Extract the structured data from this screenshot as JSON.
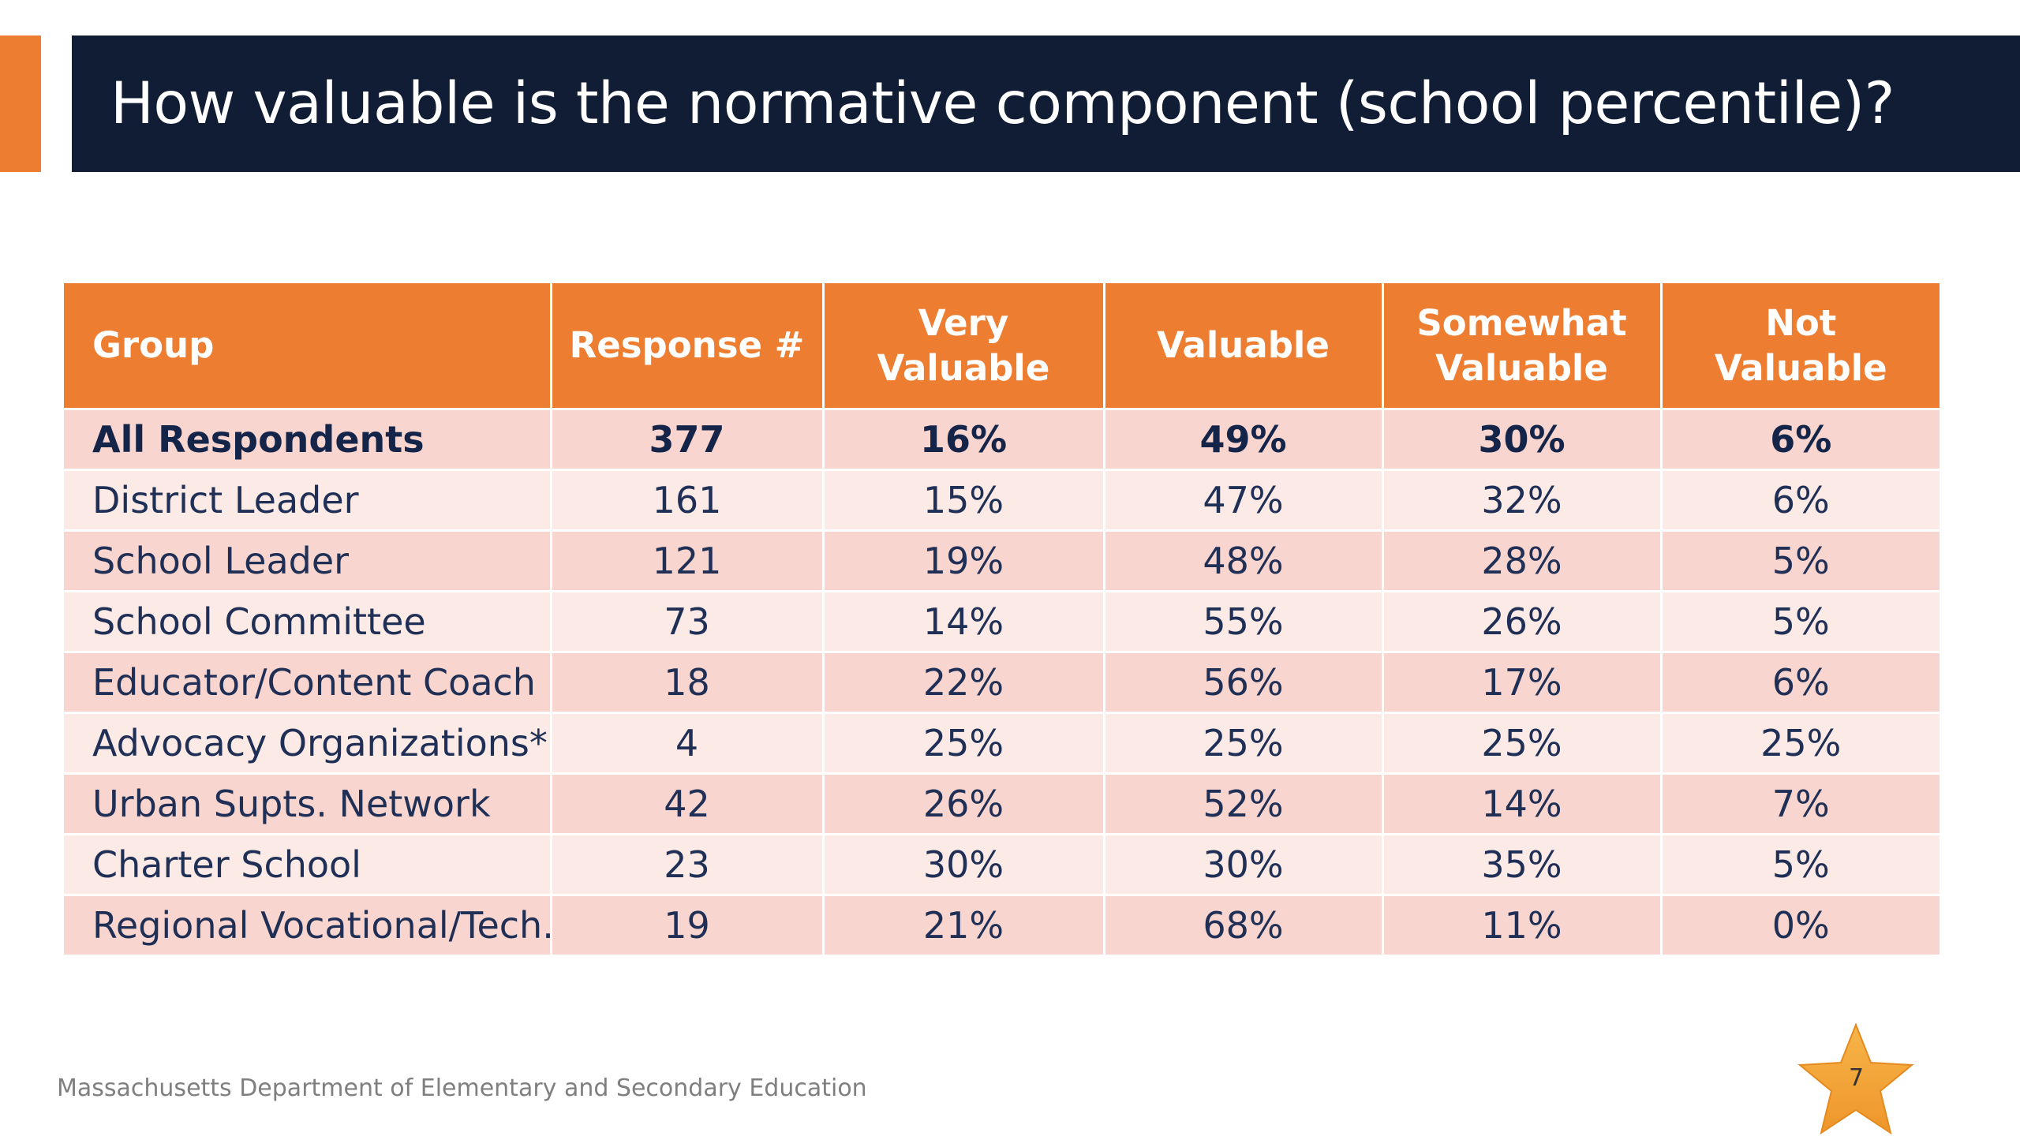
{
  "slide": {
    "title": "How valuable is the normative component (school percentile)?",
    "footer": "Massachusetts Department of Elementary and Secondary Education",
    "page_number": "7"
  },
  "colors": {
    "title_bar": "#111D35",
    "accent": "#ED7D31",
    "row_odd": "#F8D5CE",
    "row_even": "#FBEAE6",
    "text": "#1F2F55",
    "star": "#F4A433"
  },
  "table": {
    "headers": {
      "group": "Group",
      "response": "Response #",
      "very_valuable": [
        "Very",
        "Valuable"
      ],
      "valuable": "Valuable",
      "somewhat_valuable": [
        "Somewhat",
        "Valuable"
      ],
      "not_valuable": [
        "Not",
        "Valuable"
      ]
    },
    "rows": [
      {
        "group": "All Respondents",
        "response": "377",
        "very": "16%",
        "valuable": "49%",
        "somewhat": "30%",
        "not": "6%"
      },
      {
        "group": "District Leader",
        "response": "161",
        "very": "15%",
        "valuable": "47%",
        "somewhat": "32%",
        "not": "6%"
      },
      {
        "group": "School Leader",
        "response": "121",
        "very": "19%",
        "valuable": "48%",
        "somewhat": "28%",
        "not": "5%"
      },
      {
        "group": "School Committee",
        "response": "73",
        "very": "14%",
        "valuable": "55%",
        "somewhat": "26%",
        "not": "5%"
      },
      {
        "group": "Educator/Content Coach",
        "response": "18",
        "very": "22%",
        "valuable": "56%",
        "somewhat": "17%",
        "not": "6%"
      },
      {
        "group": "Advocacy Organizations*",
        "response": "4",
        "very": "25%",
        "valuable": "25%",
        "somewhat": "25%",
        "not": "25%"
      },
      {
        "group": "Urban Supts. Network",
        "response": "42",
        "very": "26%",
        "valuable": "52%",
        "somewhat": "14%",
        "not": "7%"
      },
      {
        "group": "Charter School",
        "response": "23",
        "very": "30%",
        "valuable": "30%",
        "somewhat": "35%",
        "not": "5%"
      },
      {
        "group": "Regional Vocational/Tech.",
        "response": "19",
        "very": "21%",
        "valuable": "68%",
        "somewhat": "11%",
        "not": "0%"
      }
    ]
  }
}
